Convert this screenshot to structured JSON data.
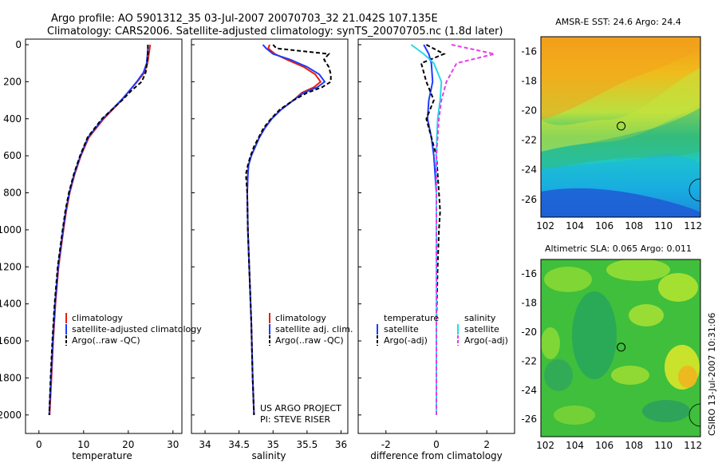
{
  "header": {
    "title_line1": "Argo profile: AO 5901312_35 03-Jul-2007 20070703_32 21.042S 107.135E",
    "title_line2": "Climatology: CARS2006. Satellite-adjusted climatology: synTS_20070705.nc (1.8d later)"
  },
  "colors": {
    "climatology": "#e8200c",
    "satellite": "#1f3cff",
    "argo": "#000000",
    "salinity_sat": "#27d8e8",
    "salinity_argo": "#e83ce8"
  },
  "depth_ticks": [
    "0",
    "200",
    "400",
    "600",
    "800",
    "1000",
    "1200",
    "1400",
    "1600",
    "1800",
    "2000"
  ],
  "chart_data": [
    {
      "type": "line",
      "id": "temperature",
      "xlabel": "temperature",
      "xticks": [
        "0",
        "10",
        "20",
        "30"
      ],
      "xlim": [
        -3,
        32
      ],
      "ylim": [
        0,
        2100
      ],
      "legend": [
        "climatology",
        "satellite-adjusted climatology",
        "Argo(..raw -QC)"
      ],
      "depth": [
        0,
        20,
        50,
        100,
        150,
        200,
        250,
        300,
        400,
        500,
        600,
        700,
        800,
        900,
        1000,
        1200,
        1400,
        1600,
        1800,
        2000
      ],
      "series": [
        {
          "name": "climatology",
          "values": [
            24.9,
            24.8,
            24.6,
            24.3,
            23.6,
            22.0,
            20.2,
            18.5,
            14.5,
            11.2,
            9.4,
            8.0,
            6.9,
            6.1,
            5.5,
            4.4,
            3.7,
            3.2,
            2.8,
            2.4
          ]
        },
        {
          "name": "satellite-adjusted climatology",
          "values": [
            24.4,
            24.4,
            24.3,
            24.1,
            23.4,
            21.9,
            20.2,
            18.4,
            14.3,
            11.0,
            9.3,
            7.9,
            6.8,
            6.0,
            5.4,
            4.3,
            3.6,
            3.1,
            2.7,
            2.3
          ]
        },
        {
          "name": "Argo(..raw -QC)",
          "values": [
            24.4,
            24.4,
            24.4,
            24.2,
            23.9,
            23.0,
            20.6,
            18.6,
            14.1,
            10.9,
            9.2,
            7.8,
            6.7,
            5.9,
            5.3,
            4.2,
            3.5,
            3.0,
            2.6,
            2.3
          ]
        }
      ]
    },
    {
      "type": "line",
      "id": "salinity",
      "xlabel": "salinity",
      "xticks": [
        "34",
        "34.5",
        "35",
        "35.5",
        "36"
      ],
      "xlim": [
        33.8,
        36.1
      ],
      "ylim": [
        0,
        2100
      ],
      "legend": [
        "climatology",
        "satellite adj. clim.",
        "Argo(..raw -QC)"
      ],
      "depth": [
        0,
        20,
        50,
        80,
        120,
        160,
        200,
        230,
        260,
        300,
        350,
        400,
        450,
        500,
        550,
        600,
        650,
        700,
        800,
        1000,
        1200,
        1500,
        1800,
        2000
      ],
      "series": [
        {
          "name": "climatology",
          "values": [
            34.95,
            34.93,
            35.03,
            35.2,
            35.45,
            35.62,
            35.7,
            35.6,
            35.42,
            35.3,
            35.12,
            34.98,
            34.88,
            34.8,
            34.74,
            34.68,
            34.64,
            34.63,
            34.62,
            34.63,
            34.65,
            34.68,
            34.7,
            34.72
          ]
        },
        {
          "name": "satellite adj. clim.",
          "values": [
            34.85,
            34.9,
            35.0,
            35.25,
            35.5,
            35.68,
            35.76,
            35.65,
            35.45,
            35.3,
            35.12,
            34.98,
            34.88,
            34.8,
            34.74,
            34.68,
            34.64,
            34.63,
            34.62,
            34.63,
            34.65,
            34.68,
            34.7,
            34.72
          ]
        },
        {
          "name": "Argo(..raw -QC)",
          "values": [
            35.0,
            35.05,
            35.82,
            35.75,
            35.82,
            35.85,
            35.85,
            35.72,
            35.5,
            35.3,
            35.1,
            34.97,
            34.86,
            34.79,
            34.72,
            34.67,
            34.63,
            34.6,
            34.62,
            34.63,
            34.65,
            34.68,
            34.7,
            34.72
          ]
        }
      ]
    },
    {
      "type": "line",
      "id": "difference",
      "xlabel": "difference from climatology",
      "xticks": [
        "-2",
        "0",
        "2"
      ],
      "xlim": [
        -3.1,
        3.1
      ],
      "ylim": [
        0,
        2100
      ],
      "legend_headers": [
        "temperature",
        "salinity"
      ],
      "legend": [
        "satellite",
        "Argo(-adj)",
        "satellite",
        "Argo(-adj)"
      ],
      "depth": [
        0,
        50,
        100,
        200,
        300,
        400,
        500,
        600,
        700,
        800,
        900,
        1000,
        1200,
        1500,
        1800,
        2000
      ],
      "series": [
        {
          "name": "temperature satellite",
          "values": [
            -0.5,
            -0.3,
            -0.2,
            -0.15,
            -0.3,
            -0.35,
            -0.2,
            -0.1,
            -0.05,
            0.0,
            0.0,
            0.0,
            0.0,
            0.0,
            0.0,
            0.0
          ]
        },
        {
          "name": "temperature Argo(-adj)",
          "values": [
            -0.4,
            0.3,
            -0.6,
            -0.4,
            -0.1,
            -0.4,
            -0.2,
            0.0,
            0.05,
            0.1,
            0.15,
            0.1,
            0.05,
            0.0,
            0.0,
            0.0
          ]
        },
        {
          "name": "salinity satellite",
          "values": [
            -1.0,
            -0.5,
            -0.1,
            0.2,
            0.15,
            0.05,
            0.02,
            0.0,
            0.0,
            0.0,
            0.0,
            0.0,
            0.0,
            0.0,
            0.0,
            0.0
          ]
        },
        {
          "name": "salinity Argo(-adj)",
          "values": [
            0.6,
            2.3,
            0.8,
            0.4,
            0.2,
            0.1,
            0.05,
            0.0,
            0.0,
            0.0,
            0.0,
            0.0,
            0.0,
            0.0,
            0.0,
            0.0
          ]
        }
      ]
    }
  ],
  "maps": {
    "sst": {
      "title": "AMSR-E SST: 24.6 Argo: 24.4"
    },
    "sla": {
      "title": "Altimetric SLA: 0.065 Argo: 0.011"
    },
    "lat_ticks": [
      "-16",
      "-18",
      "-20",
      "-22",
      "-24",
      "-26"
    ],
    "lon_ticks": [
      "102",
      "104",
      "106",
      "108",
      "110",
      "112"
    ],
    "profile_location": {
      "lat": -21.042,
      "lon": 107.135
    },
    "lat_range": [
      -27.2,
      -15.0
    ],
    "lon_range": [
      101.7,
      112.5
    ]
  },
  "notes": {
    "project": "US ARGO PROJECT",
    "pi": "PI: STEVE RISER",
    "credit": "CSIRO 13-Jul-2007 10:31:06"
  }
}
